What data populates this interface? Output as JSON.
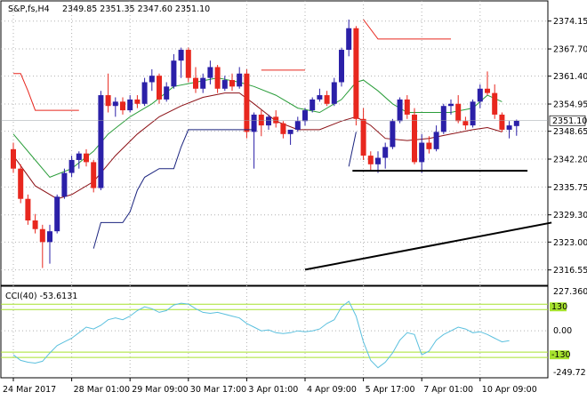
{
  "header": {
    "symbol": "S&P,fs,H4",
    "ohlc": "2349.85 2351.35 2347.60 2351.10"
  },
  "indicator": {
    "label": "CCI(40) -53.6131",
    "level_high_label": "130",
    "level_low_label": "-130"
  },
  "colors": {
    "bull": "#2b20a8",
    "bear": "#e8271e",
    "ma_fast": "#2a9d3a",
    "ma_slow": "#8b0f14",
    "sar": "#1a237e",
    "cci": "#5bc0de",
    "level_band": "#a6e22e",
    "price_tag_bg": "#ffffff"
  },
  "chart_data": [
    {
      "type": "candlestick",
      "ylim": [
        2313.6,
        2378.0
      ],
      "y_ticks": [
        "2374.15",
        "2367.70",
        "2361.40",
        "2354.95",
        "2348.65",
        "2342.20",
        "2335.75",
        "2329.30",
        "2323.00",
        "2316.55"
      ],
      "y_tick_values": [
        2374.15,
        2367.7,
        2361.4,
        2354.95,
        2348.65,
        2342.2,
        2335.75,
        2329.3,
        2323.0,
        2316.55
      ],
      "current_price": "2351.10",
      "current_price_value": 2351.1,
      "x_labels": [
        "24 Mar 2017",
        "28 Mar 01:00",
        "29 Mar 09:00",
        "30 Mar 17:00",
        "3 Apr 01:00",
        "4 Apr 09:00",
        "5 Apr 17:00",
        "7 Apr 01:00",
        "10 Apr 09:00"
      ],
      "x_label_index": [
        0,
        8,
        16,
        24,
        32,
        40,
        48,
        56,
        64
      ],
      "candles": [
        [
          2344.5,
          2346.0,
          2339.0,
          2340.0
        ],
        [
          2340.0,
          2341.0,
          2332.0,
          2333.0
        ],
        [
          2333.0,
          2334.0,
          2327.0,
          2328.0
        ],
        [
          2328.0,
          2329.5,
          2325.0,
          2326.0
        ],
        [
          2326.0,
          2327.0,
          2317.0,
          2323.0
        ],
        [
          2323.0,
          2327.0,
          2318.0,
          2325.5
        ],
        [
          2325.5,
          2334.0,
          2325.0,
          2333.5
        ],
        [
          2333.5,
          2340.0,
          2333.0,
          2339.0
        ],
        [
          2339.0,
          2343.0,
          2338.0,
          2342.0
        ],
        [
          2342.0,
          2344.0,
          2340.0,
          2343.5
        ],
        [
          2343.5,
          2344.5,
          2340.5,
          2341.5
        ],
        [
          2341.5,
          2342.0,
          2334.5,
          2335.5
        ],
        [
          2335.5,
          2358.0,
          2335.0,
          2357.0
        ],
        [
          2357.0,
          2362.0,
          2353.0,
          2354.5
        ],
        [
          2354.5,
          2356.5,
          2352.0,
          2355.5
        ],
        [
          2355.5,
          2356.5,
          2352.5,
          2353.5
        ],
        [
          2353.5,
          2357.0,
          2353.0,
          2356.0
        ],
        [
          2356.0,
          2357.0,
          2354.0,
          2355.0
        ],
        [
          2355.0,
          2361.0,
          2354.5,
          2360.0
        ],
        [
          2360.0,
          2363.0,
          2358.0,
          2361.5
        ],
        [
          2361.5,
          2362.0,
          2355.0,
          2356.0
        ],
        [
          2356.0,
          2360.0,
          2355.5,
          2359.0
        ],
        [
          2359.0,
          2366.5,
          2358.5,
          2365.0
        ],
        [
          2365.0,
          2368.0,
          2361.0,
          2367.5
        ],
        [
          2367.5,
          2368.0,
          2360.0,
          2361.0
        ],
        [
          2361.0,
          2363.5,
          2357.5,
          2358.5
        ],
        [
          2358.5,
          2362.0,
          2357.5,
          2361.0
        ],
        [
          2361.0,
          2365.0,
          2359.5,
          2363.5
        ],
        [
          2363.5,
          2364.0,
          2357.5,
          2358.5
        ],
        [
          2358.5,
          2361.5,
          2358.0,
          2360.5
        ],
        [
          2360.5,
          2362.0,
          2358.0,
          2359.0
        ],
        [
          2359.0,
          2363.5,
          2358.5,
          2362.0
        ],
        [
          2362.0,
          2363.0,
          2347.0,
          2348.5
        ],
        [
          2348.5,
          2353.0,
          2340.0,
          2352.5
        ],
        [
          2352.5,
          2353.5,
          2347.5,
          2350.0
        ],
        [
          2350.0,
          2352.5,
          2349.0,
          2352.0
        ],
        [
          2352.0,
          2353.5,
          2349.5,
          2350.5
        ],
        [
          2350.5,
          2351.0,
          2347.0,
          2348.0
        ],
        [
          2348.0,
          2349.0,
          2345.5,
          2349.0
        ],
        [
          2349.0,
          2352.0,
          2348.5,
          2351.0
        ],
        [
          2351.0,
          2354.0,
          2350.0,
          2353.5
        ],
        [
          2353.5,
          2356.5,
          2353.0,
          2356.0
        ],
        [
          2356.0,
          2358.5,
          2355.5,
          2357.0
        ],
        [
          2357.0,
          2358.0,
          2354.5,
          2355.0
        ],
        [
          2355.0,
          2361.0,
          2354.5,
          2360.0
        ],
        [
          2360.0,
          2368.0,
          2359.0,
          2367.5
        ],
        [
          2367.5,
          2374.5,
          2366.0,
          2372.5
        ],
        [
          2372.5,
          2373.0,
          2350.0,
          2351.5
        ],
        [
          2351.5,
          2354.0,
          2342.0,
          2343.0
        ],
        [
          2343.0,
          2344.0,
          2339.5,
          2341.0
        ],
        [
          2341.0,
          2344.0,
          2339.0,
          2342.5
        ],
        [
          2342.5,
          2346.0,
          2340.0,
          2345.0
        ],
        [
          2345.0,
          2351.5,
          2344.5,
          2351.0
        ],
        [
          2351.0,
          2356.5,
          2350.5,
          2356.0
        ],
        [
          2356.0,
          2357.0,
          2351.5,
          2352.5
        ],
        [
          2352.5,
          2354.0,
          2341.0,
          2341.5
        ],
        [
          2341.5,
          2348.0,
          2339.0,
          2346.0
        ],
        [
          2346.0,
          2347.5,
          2343.5,
          2344.5
        ],
        [
          2344.5,
          2350.0,
          2344.0,
          2348.5
        ],
        [
          2348.5,
          2355.0,
          2348.0,
          2354.5
        ],
        [
          2354.5,
          2356.0,
          2352.5,
          2355.0
        ],
        [
          2355.0,
          2357.0,
          2350.5,
          2351.0
        ],
        [
          2351.0,
          2352.0,
          2349.0,
          2350.0
        ],
        [
          2350.0,
          2356.0,
          2349.5,
          2355.5
        ],
        [
          2355.5,
          2359.5,
          2354.0,
          2358.5
        ],
        [
          2358.5,
          2362.5,
          2357.0,
          2357.5
        ],
        [
          2357.5,
          2359.5,
          2351.5,
          2352.5
        ],
        [
          2352.5,
          2353.0,
          2348.5,
          2349.0
        ],
        [
          2349.0,
          2351.0,
          2347.0,
          2350.0
        ],
        [
          2349.85,
          2351.35,
          2347.6,
          2351.1
        ]
      ],
      "ma_fast": [
        [
          0,
          2348
        ],
        [
          3,
          2342
        ],
        [
          5,
          2338
        ],
        [
          8,
          2340
        ],
        [
          11,
          2344
        ],
        [
          13,
          2348
        ],
        [
          16,
          2352
        ],
        [
          19,
          2355
        ],
        [
          22,
          2359
        ],
        [
          25,
          2360
        ],
        [
          28,
          2361
        ],
        [
          31,
          2360
        ],
        [
          33,
          2359
        ],
        [
          36,
          2357
        ],
        [
          39,
          2354
        ],
        [
          42,
          2353
        ],
        [
          45,
          2356
        ],
        [
          47,
          2360
        ],
        [
          48,
          2360.5
        ],
        [
          50,
          2358
        ],
        [
          52,
          2355
        ],
        [
          54,
          2353
        ],
        [
          57,
          2353
        ],
        [
          60,
          2353
        ],
        [
          63,
          2354
        ],
        [
          65,
          2357
        ],
        [
          67,
          2355.5
        ]
      ],
      "ma_slow": [
        [
          0,
          2343
        ],
        [
          3,
          2336
        ],
        [
          6,
          2333
        ],
        [
          8,
          2334
        ],
        [
          11,
          2337
        ],
        [
          14,
          2343
        ],
        [
          17,
          2348
        ],
        [
          20,
          2352
        ],
        [
          23,
          2354.5
        ],
        [
          26,
          2356.5
        ],
        [
          29,
          2357.5
        ],
        [
          31,
          2357.5
        ],
        [
          33,
          2355
        ],
        [
          36,
          2351
        ],
        [
          39,
          2349
        ],
        [
          42,
          2349
        ],
        [
          45,
          2351
        ],
        [
          47,
          2352
        ],
        [
          49,
          2350
        ],
        [
          51,
          2347
        ],
        [
          54,
          2346.5
        ],
        [
          57,
          2347
        ],
        [
          60,
          2348
        ],
        [
          63,
          2349
        ],
        [
          65,
          2349.5
        ],
        [
          67,
          2348.5
        ]
      ],
      "sar_red": [
        [
          [
            0,
            2362
          ],
          [
            1,
            2362
          ],
          [
            2,
            2358
          ],
          [
            3,
            2353.5
          ],
          [
            9,
            2353.5
          ]
        ],
        [
          [
            34,
            2362.8
          ],
          [
            40,
            2362.8
          ]
        ],
        [
          [
            48,
            2374.5
          ],
          [
            50,
            2370.0
          ],
          [
            60,
            2370.0
          ]
        ]
      ],
      "sar_navy": [
        [
          [
            11,
            2321.5
          ],
          [
            12,
            2327.5
          ],
          [
            15,
            2327.5
          ],
          [
            16,
            2330
          ],
          [
            17,
            2335
          ],
          [
            18,
            2338
          ],
          [
            20,
            2340
          ],
          [
            22,
            2340
          ],
          [
            23,
            2345
          ],
          [
            24,
            2349
          ],
          [
            33,
            2349
          ]
        ],
        [
          [
            46,
            2340.5
          ],
          [
            47,
            2348.5
          ]
        ]
      ],
      "support_line": {
        "from": [
          46.5,
          2339.5
        ],
        "to": [
          70.5,
          2339.5
        ]
      },
      "trend_line": {
        "from": [
          40,
          2316.6
        ],
        "to": [
          73.8,
          2327.5
        ]
      }
    },
    {
      "type": "line",
      "name": "CCI(40)",
      "ylim": [
        -249.7,
        227.36
      ],
      "y_ticks": [
        "227.3607",
        "0.00",
        "-249.72"
      ],
      "y_tick_values": [
        227.3607,
        0,
        -249.72
      ],
      "levels": [
        130,
        -130
      ],
      "points": [
        [
          0,
          -130
        ],
        [
          1,
          -160
        ],
        [
          2,
          -170
        ],
        [
          3,
          -175
        ],
        [
          4,
          -165
        ],
        [
          5,
          -120
        ],
        [
          6,
          -80
        ],
        [
          7,
          -60
        ],
        [
          8,
          -40
        ],
        [
          9,
          -10
        ],
        [
          10,
          20
        ],
        [
          11,
          10
        ],
        [
          12,
          30
        ],
        [
          13,
          60
        ],
        [
          14,
          70
        ],
        [
          15,
          60
        ],
        [
          16,
          80
        ],
        [
          17,
          110
        ],
        [
          18,
          130
        ],
        [
          19,
          120
        ],
        [
          20,
          100
        ],
        [
          21,
          110
        ],
        [
          22,
          140
        ],
        [
          23,
          150
        ],
        [
          24,
          145
        ],
        [
          25,
          120
        ],
        [
          26,
          100
        ],
        [
          27,
          95
        ],
        [
          28,
          100
        ],
        [
          29,
          90
        ],
        [
          30,
          80
        ],
        [
          31,
          70
        ],
        [
          32,
          40
        ],
        [
          33,
          20
        ],
        [
          34,
          0
        ],
        [
          35,
          5
        ],
        [
          36,
          -10
        ],
        [
          37,
          -15
        ],
        [
          38,
          -10
        ],
        [
          39,
          0
        ],
        [
          40,
          -5
        ],
        [
          41,
          0
        ],
        [
          42,
          10
        ],
        [
          43,
          40
        ],
        [
          44,
          60
        ],
        [
          45,
          130
        ],
        [
          46,
          160
        ],
        [
          47,
          80
        ],
        [
          48,
          -60
        ],
        [
          49,
          -160
        ],
        [
          50,
          -200
        ],
        [
          51,
          -170
        ],
        [
          52,
          -120
        ],
        [
          53,
          -50
        ],
        [
          54,
          -10
        ],
        [
          55,
          -20
        ],
        [
          56,
          -130
        ],
        [
          57,
          -110
        ],
        [
          58,
          -50
        ],
        [
          59,
          -20
        ],
        [
          60,
          0
        ],
        [
          61,
          20
        ],
        [
          62,
          10
        ],
        [
          63,
          -10
        ],
        [
          64,
          -5
        ],
        [
          65,
          -20
        ],
        [
          66,
          -40
        ],
        [
          67,
          -60
        ],
        [
          68,
          -53.6
        ]
      ]
    }
  ]
}
